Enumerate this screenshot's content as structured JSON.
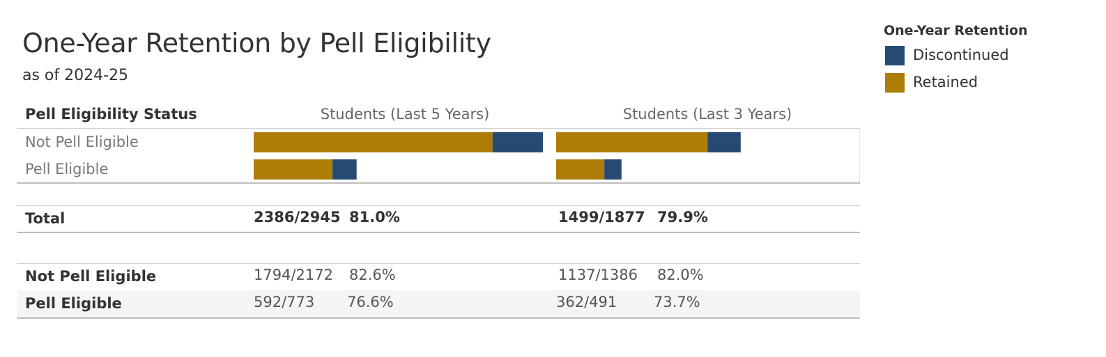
{
  "title": "One-Year Retention by Pell Eligibility",
  "subtitle": "as of 2024-25",
  "legend": {
    "title": "One-Year Retention",
    "items": [
      {
        "label": "Discontinued",
        "color": "#254a73"
      },
      {
        "label": "Retained",
        "color": "#ad7d07"
      }
    ]
  },
  "table": {
    "row_header": "Pell Eligibility Status",
    "bar_rows": [
      "Not Pell Eligible",
      "Pell Eligible"
    ],
    "total_label": "Total",
    "detail_rows": [
      "Not Pell Eligible",
      "Pell Eligible"
    ]
  },
  "chart_data": {
    "type": "bar",
    "stacked": true,
    "orientation": "horizontal",
    "categories": [
      "Not Pell Eligible",
      "Pell Eligible"
    ],
    "panels": [
      {
        "title": "Students (Last 5 Years)",
        "series": [
          {
            "name": "Retained",
            "color": "#ad7d07",
            "values": [
              1794,
              592
            ]
          },
          {
            "name": "Discontinued",
            "color": "#254a73",
            "values": [
              378,
              181
            ]
          }
        ],
        "total": {
          "fraction": "2386/2945",
          "pct": "81.0%"
        },
        "rows": [
          {
            "fraction": "1794/2172",
            "pct": "82.6%"
          },
          {
            "fraction": "592/773",
            "pct": "76.6%"
          }
        ]
      },
      {
        "title": "Students (Last 3 Years)",
        "series": [
          {
            "name": "Retained",
            "color": "#ad7d07",
            "values": [
              1137,
              362
            ]
          },
          {
            "name": "Discontinued",
            "color": "#254a73",
            "values": [
              249,
              129
            ]
          }
        ],
        "total": {
          "fraction": "1499/1877",
          "pct": "79.9%"
        },
        "rows": [
          {
            "fraction": "1137/1386",
            "pct": "82.0%"
          },
          {
            "fraction": "362/491",
            "pct": "73.7%"
          }
        ]
      }
    ]
  }
}
